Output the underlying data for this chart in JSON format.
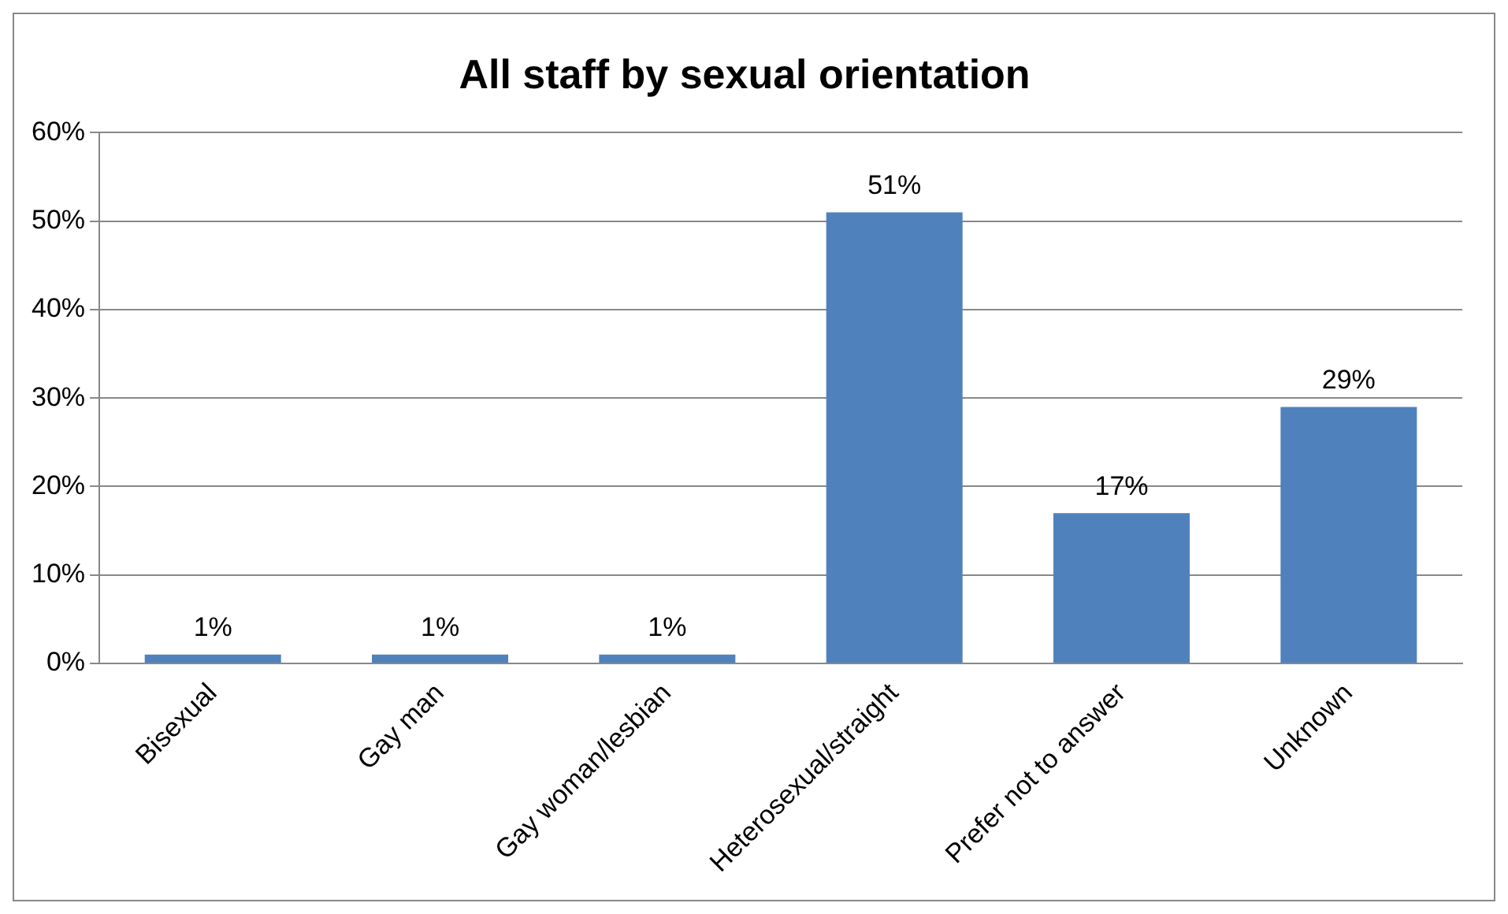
{
  "chart_data": {
    "type": "bar",
    "title": "All staff by sexual orientation",
    "categories": [
      "Bisexual",
      "Gay man",
      "Gay woman/lesbian",
      "Heterosexual/straight",
      "Prefer not to answer",
      "Unknown"
    ],
    "values": [
      1,
      1,
      1,
      51,
      17,
      29
    ],
    "value_labels": [
      "1%",
      "1%",
      "1%",
      "51%",
      "17%",
      "29%"
    ],
    "color": "#4f81bd",
    "ylim": [
      0,
      60
    ],
    "yticks": [
      {
        "value": 0,
        "label": "0%"
      },
      {
        "value": 10,
        "label": "10%"
      },
      {
        "value": 20,
        "label": "20%"
      },
      {
        "value": 30,
        "label": "30%"
      },
      {
        "value": 40,
        "label": "40%"
      },
      {
        "value": 50,
        "label": "50%"
      },
      {
        "value": 60,
        "label": "60%"
      }
    ],
    "grid": "y",
    "legend": false
  }
}
